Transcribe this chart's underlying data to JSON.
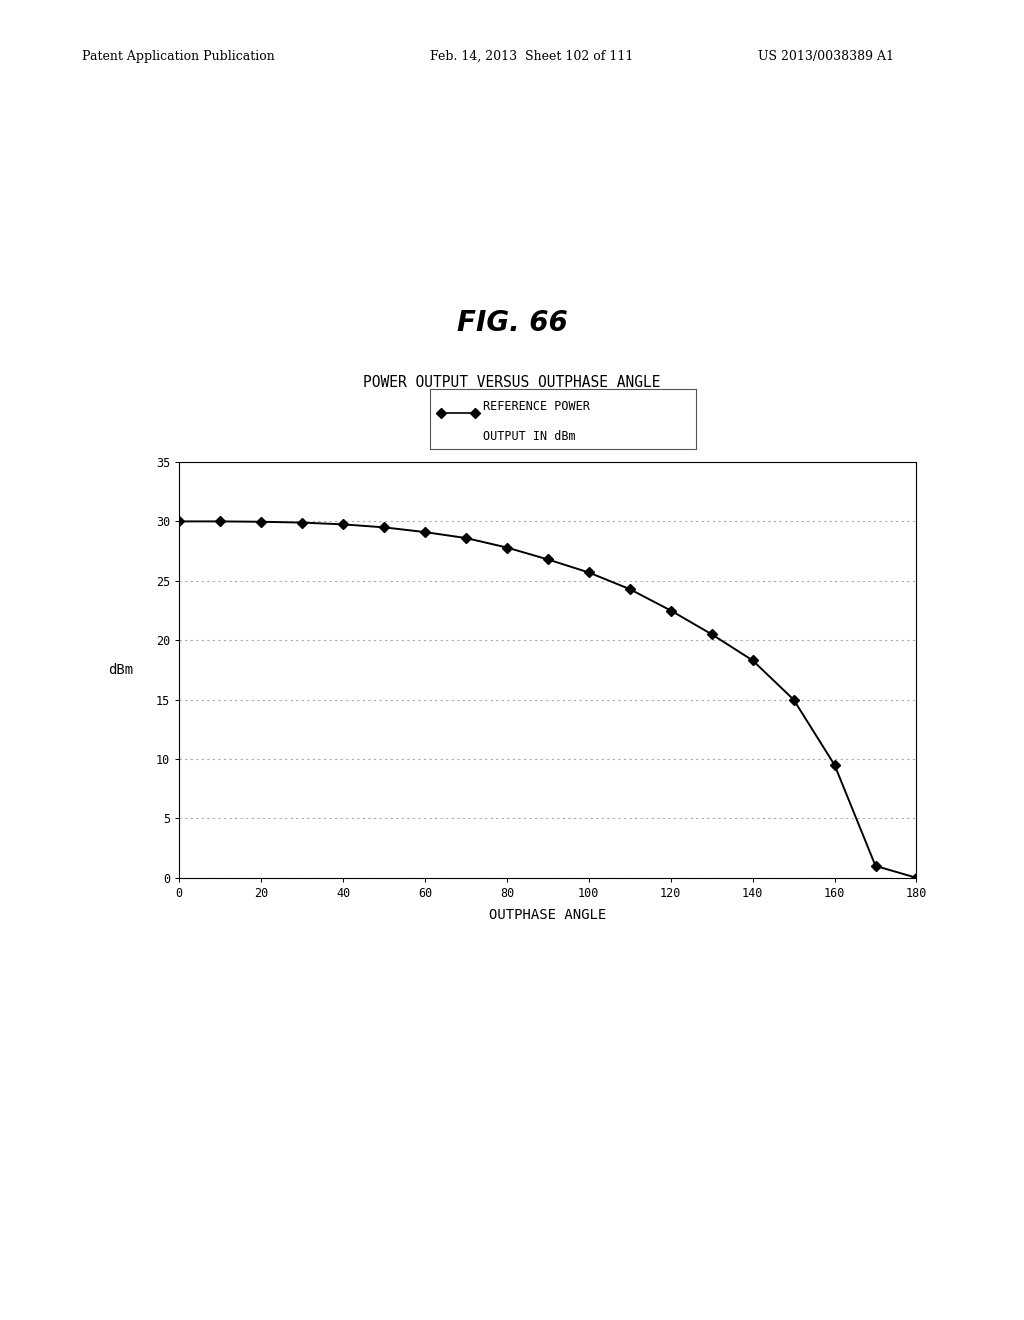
{
  "fig_label": "FIG. 66",
  "chart_title": "POWER OUTPUT VERSUS OUTPHASE ANGLE",
  "xlabel": "OUTPHASE ANGLE",
  "ylabel": "dBm",
  "xlim": [
    0,
    180
  ],
  "ylim": [
    0,
    35
  ],
  "xticks": [
    0,
    20,
    40,
    60,
    80,
    100,
    120,
    140,
    160,
    180
  ],
  "yticks": [
    0,
    5,
    10,
    15,
    20,
    25,
    30,
    35
  ],
  "x_data": [
    0,
    10,
    20,
    30,
    40,
    50,
    60,
    70,
    80,
    90,
    100,
    110,
    120,
    130,
    140,
    150,
    160,
    170,
    180
  ],
  "y_data": [
    30.0,
    30.0,
    29.97,
    29.9,
    29.75,
    29.5,
    29.1,
    28.6,
    27.8,
    26.8,
    25.7,
    24.3,
    22.5,
    20.5,
    18.3,
    15.0,
    9.5,
    1.0,
    0.0
  ],
  "line_color": "#000000",
  "marker": "D",
  "marker_size": 5,
  "bg_color": "#ffffff",
  "grid_color": "#aaaaaa",
  "header_left": "Patent Application Publication",
  "header_mid": "Feb. 14, 2013  Sheet 102 of 111",
  "header_right": "US 2013/0038389 A1",
  "legend_line1": "REFERENCE POWER",
  "legend_line2": "OUTPUT IN dBm"
}
